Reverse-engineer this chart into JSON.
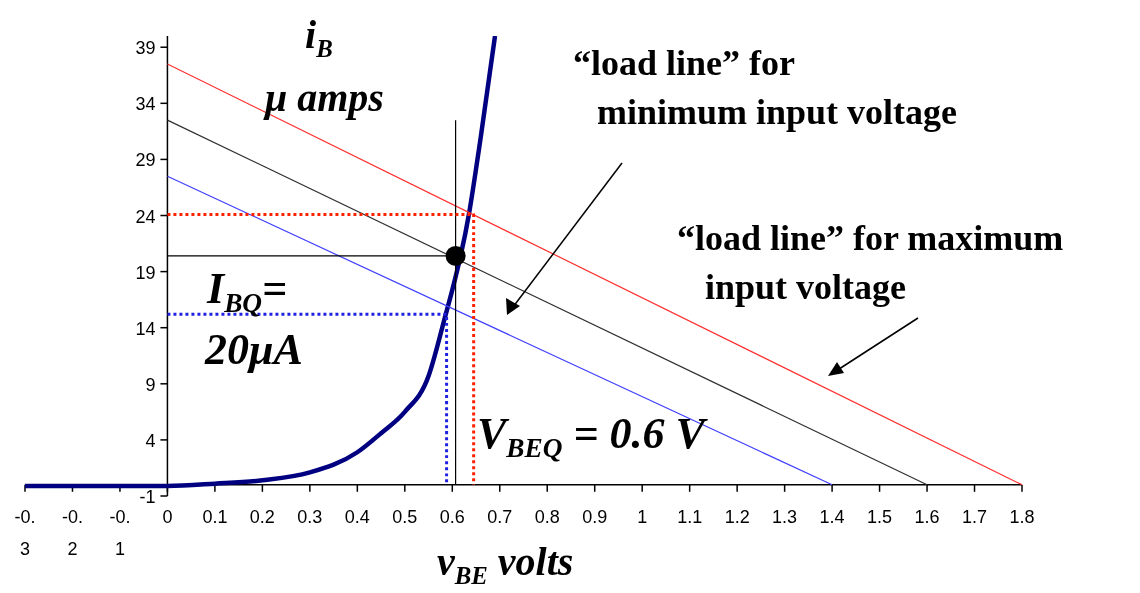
{
  "chart_data": {
    "type": "line",
    "xlabel": "v$_{BE}$ volts",
    "ylabel": "i$_{B}$\nμ amps",
    "xlim": [
      -0.3,
      1.8
    ],
    "ylim": [
      -1,
      40
    ],
    "xticks": [
      -0.3,
      -0.2,
      -0.1,
      0,
      0.1,
      0.2,
      0.3,
      0.4,
      0.5,
      0.6,
      0.7,
      0.8,
      0.9,
      1,
      1.1,
      1.2,
      1.3,
      1.4,
      1.5,
      1.6,
      1.7,
      1.8
    ],
    "yticks": [
      -1,
      4,
      9,
      14,
      19,
      24,
      29,
      34,
      39
    ],
    "grid": false,
    "series": [
      {
        "color": "#000080",
        "x": [
          -0.3,
          -0.2,
          -0.1,
          0,
          0.1,
          0.2,
          0.3,
          0.4,
          0.45,
          0.5,
          0.55,
          0.58,
          0.635,
          0.66,
          0.69
        ],
        "values": [
          -0.1,
          -0.1,
          -0.1,
          -0.1,
          0.1,
          0.4,
          1.1,
          2.9,
          4.6,
          6.5,
          9.7,
          14.2,
          24.1,
          31,
          40
        ]
      },
      {
        "color": "#ff3030",
        "x": [
          0,
          1.8
        ],
        "values": [
          37.5,
          0
        ]
      },
      {
        "color": "#303030",
        "x": [
          0,
          1.6
        ],
        "values": [
          32.5,
          0
        ]
      },
      {
        "color": "#4040ff",
        "x": [
          0,
          1.4
        ],
        "values": [
          27.5,
          0
        ]
      },
      {
        "color": "#000000",
        "x": [
          0,
          0.607
        ],
        "values": [
          20.4,
          20.4
        ]
      },
      {
        "color": "#000000",
        "x": [
          0.607,
          0.607
        ],
        "values": [
          0,
          32.5
        ]
      },
      {
        "color": "#ff2000",
        "x": [
          0,
          0.645,
          0.645
        ],
        "values": [
          24.1,
          24.1,
          0
        ],
        "line_style": "dotted"
      },
      {
        "color": "#2020e0",
        "x": [
          0,
          0.588,
          0.588
        ],
        "values": [
          15.2,
          15.2,
          0
        ],
        "line_style": "dotted"
      },
      {
        "type": "scatter",
        "color": "#000000",
        "x": [
          0.607
        ],
        "values": [
          20.4
        ],
        "marker": "circle"
      }
    ],
    "annotations": [
      "“load line” for\nminimum input voltage",
      "“load line” for maximum\ninput voltage",
      "I$_{BQ}$=\n20μA",
      "V$_{BEQ}$ = 0.6 V"
    ]
  }
}
